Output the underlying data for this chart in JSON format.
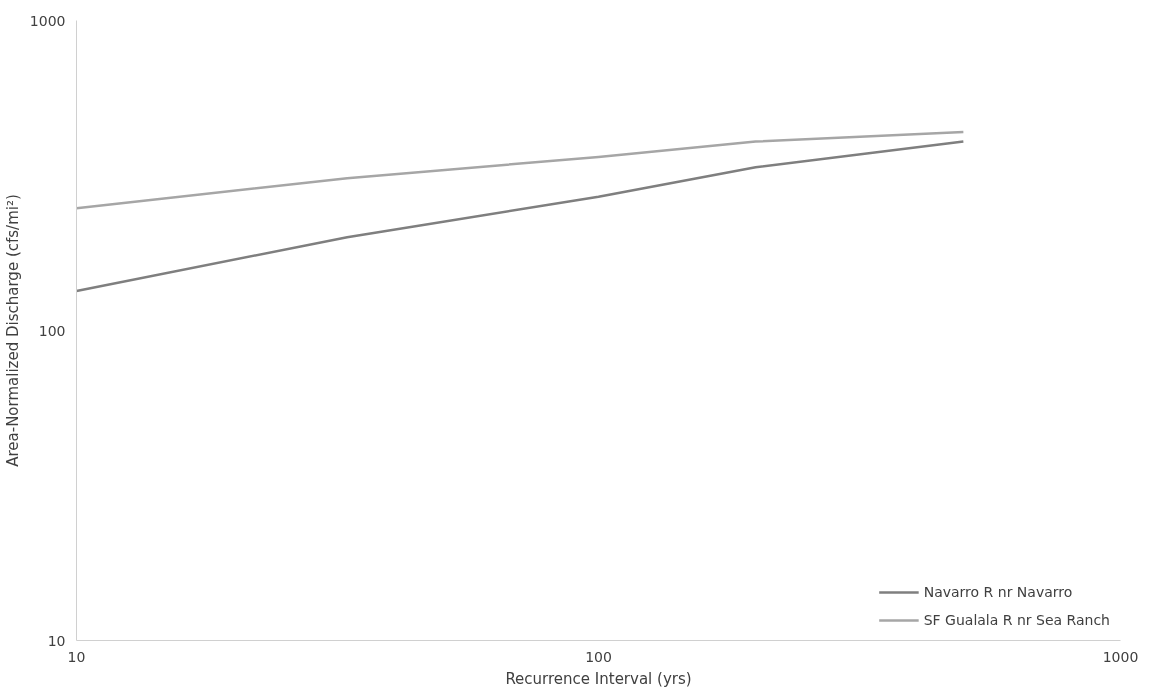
{
  "chart_data": {
    "type": "line",
    "xlabel": "Recurrence Interval (yrs)",
    "ylabel": "Area-Normalized Discharge (cfs/mi²)",
    "log": "xy",
    "xlim": [
      10,
      1000
    ],
    "ylim": [
      10,
      1000
    ],
    "xticks": [
      10,
      100,
      1000
    ],
    "yticks": [
      10,
      100,
      1000
    ],
    "grid": false,
    "legend": "bottom right",
    "marker": "none",
    "line_style": "solid",
    "x": [
      10,
      33,
      100,
      200,
      500
    ],
    "series": [
      {
        "name": "Navarro R nr Navarro",
        "color": "#7f7f7f",
        "values": [
          134,
          200,
          270,
          336,
          407
        ]
      },
      {
        "name": "SF Gualala R nr Sea Ranch",
        "color": "#a6a6a6",
        "values": [
          248,
          310,
          363,
          407,
          437
        ]
      }
    ]
  }
}
